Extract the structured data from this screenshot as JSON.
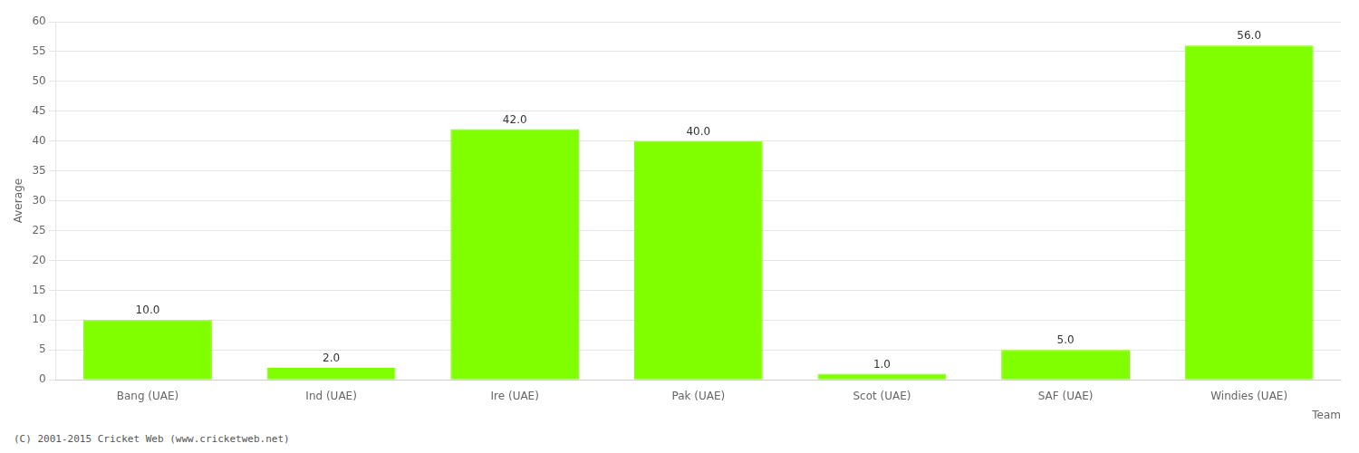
{
  "chart_data": {
    "type": "bar",
    "categories": [
      "Bang (UAE)",
      "Ind (UAE)",
      "Ire (UAE)",
      "Pak (UAE)",
      "Scot (UAE)",
      "SAF (UAE)",
      "Windies (UAE)"
    ],
    "values": [
      10.0,
      2.0,
      42.0,
      40.0,
      1.0,
      5.0,
      56.0
    ],
    "value_labels": [
      "10.0",
      "2.0",
      "42.0",
      "40.0",
      "1.0",
      "5.0",
      "56.0"
    ],
    "data_labels": true,
    "color": "#7fff00",
    "xlabel": "Team",
    "ylabel": "Average",
    "ylim": [
      0,
      60
    ],
    "yticks": [
      0,
      5,
      10,
      15,
      20,
      25,
      30,
      35,
      40,
      45,
      50,
      55,
      60
    ],
    "grid": true,
    "annotations": [
      "(C) 2001-2015 Cricket Web (www.cricketweb.net)"
    ]
  }
}
